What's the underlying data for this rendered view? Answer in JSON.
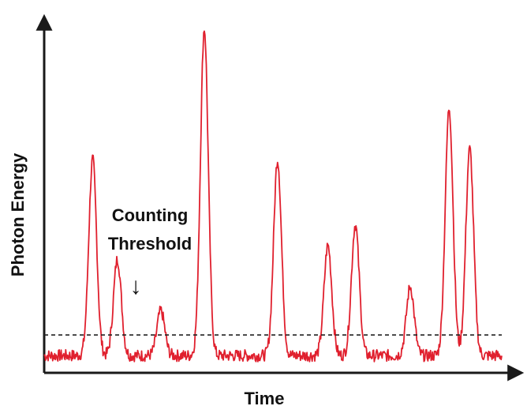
{
  "chart_data": {
    "type": "line",
    "xlabel": "Time",
    "ylabel": "Photon Energy",
    "annotation": {
      "line1": "Counting",
      "line2": "Threshold",
      "arrow": "↓"
    },
    "threshold": 0.11,
    "xlim": [
      0,
      100
    ],
    "ylim": [
      0,
      1
    ],
    "baseline": 0.05,
    "pulses": [
      {
        "x": 10.6,
        "y": 0.62
      },
      {
        "x": 16.0,
        "y": 0.33
      },
      {
        "x": 25.5,
        "y": 0.18
      },
      {
        "x": 35.0,
        "y": 1.0
      },
      {
        "x": 51.0,
        "y": 0.62
      },
      {
        "x": 62.0,
        "y": 0.37
      },
      {
        "x": 68.0,
        "y": 0.43
      },
      {
        "x": 80.0,
        "y": 0.25
      },
      {
        "x": 88.5,
        "y": 0.77
      },
      {
        "x": 93.0,
        "y": 0.65
      }
    ],
    "colors": {
      "signal": "#e0202e",
      "axis": "#1a1a1a",
      "threshold": "#222222"
    },
    "grid": false
  }
}
